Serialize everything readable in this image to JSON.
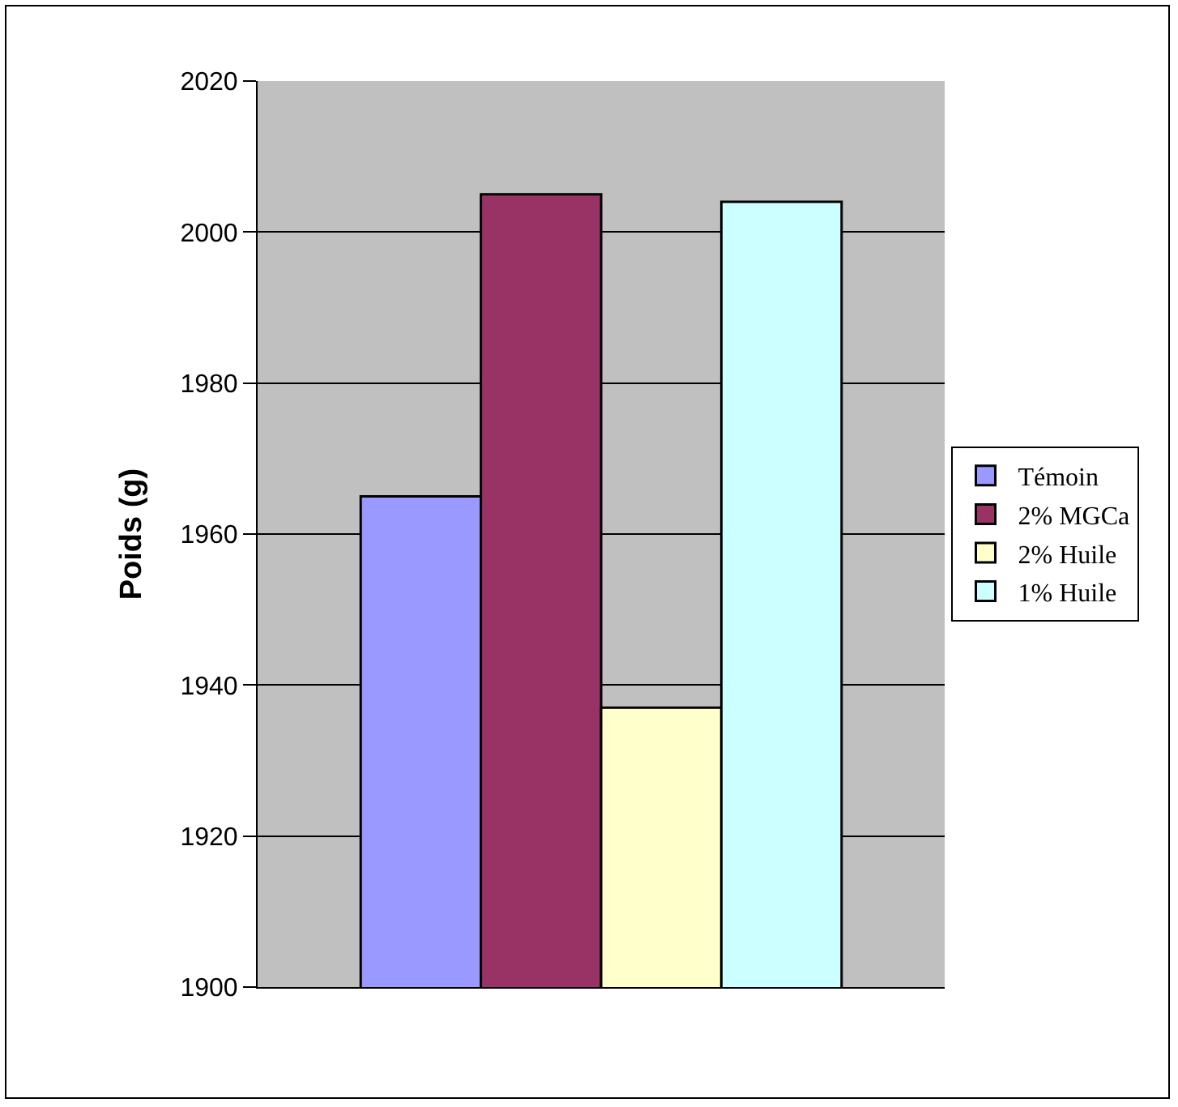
{
  "chart_data": {
    "type": "bar",
    "ylabel": "Poids (g)",
    "categories": [
      null
    ],
    "series": [
      {
        "name": "Témoin",
        "color": "#9999ff",
        "values": [
          1965
        ]
      },
      {
        "name": "2% MGCa",
        "color": "#993366",
        "values": [
          2005
        ]
      },
      {
        "name": "2% Huile",
        "color": "#ffffcc",
        "values": [
          1937
        ]
      },
      {
        "name": "1% Huile",
        "color": "#ccffff",
        "values": [
          2004
        ]
      }
    ],
    "ylim": [
      1900,
      2020
    ],
    "yticks": [
      1900,
      1920,
      1940,
      1960,
      1980,
      2000,
      2020
    ],
    "grid": "y",
    "legend": "right"
  }
}
